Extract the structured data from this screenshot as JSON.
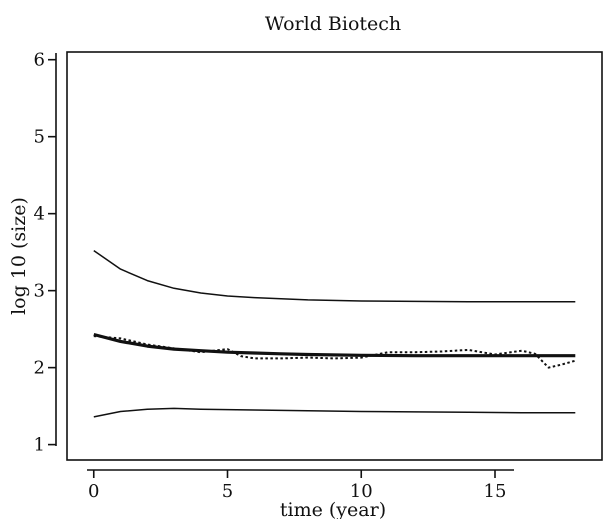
{
  "chart_data": {
    "type": "line",
    "title": "World Biotech",
    "xlabel": "time (year)",
    "ylabel": "log 10 (size)",
    "xlim": [
      -1,
      19
    ],
    "ylim": [
      0.8,
      6.1
    ],
    "xticks": [
      0,
      5,
      10,
      15
    ],
    "yticks": [
      1,
      2,
      3,
      4,
      5,
      6
    ],
    "grid": false,
    "series": [
      {
        "style": "solid",
        "width": "thin",
        "x": [
          0,
          1,
          2,
          3,
          4,
          5,
          6,
          7,
          8,
          10,
          12,
          14,
          16,
          18
        ],
        "y": [
          3.52,
          3.28,
          3.13,
          3.03,
          2.97,
          2.93,
          2.91,
          2.895,
          2.88,
          2.865,
          2.86,
          2.855,
          2.855,
          2.855
        ]
      },
      {
        "style": "solid",
        "width": "thick",
        "x": [
          0,
          1,
          2,
          3,
          4,
          5,
          6,
          7,
          8,
          10,
          12,
          14,
          16,
          18
        ],
        "y": [
          2.43,
          2.34,
          2.28,
          2.24,
          2.22,
          2.2,
          2.19,
          2.18,
          2.17,
          2.16,
          2.155,
          2.155,
          2.155,
          2.155
        ]
      },
      {
        "style": "dotted",
        "width": "thin",
        "x": [
          0,
          1,
          2,
          3,
          4,
          5,
          5.5,
          6,
          7,
          8,
          9,
          10,
          11,
          12,
          13,
          14,
          15,
          16,
          16.5,
          17,
          17.5,
          18
        ],
        "y": [
          2.41,
          2.38,
          2.3,
          2.25,
          2.2,
          2.24,
          2.15,
          2.12,
          2.12,
          2.13,
          2.12,
          2.13,
          2.2,
          2.2,
          2.21,
          2.23,
          2.17,
          2.22,
          2.18,
          2.0,
          2.04,
          2.09
        ]
      },
      {
        "style": "solid",
        "width": "thin",
        "x": [
          0,
          1,
          2,
          3,
          4,
          5,
          6,
          8,
          10,
          12,
          14,
          16,
          18
        ],
        "y": [
          1.36,
          1.43,
          1.46,
          1.47,
          1.46,
          1.455,
          1.45,
          1.44,
          1.43,
          1.425,
          1.42,
          1.415,
          1.415
        ]
      }
    ]
  }
}
